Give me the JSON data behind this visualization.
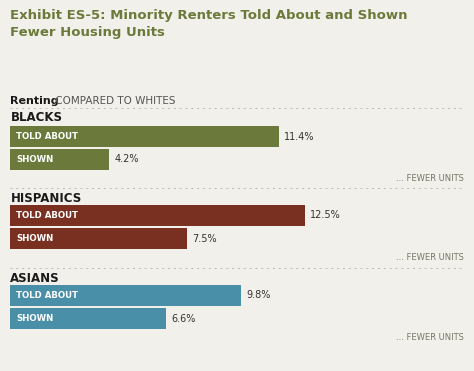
{
  "title_line1": "Exhibit ES-5: Minority Renters Told About and Shown",
  "title_line2": "Fewer Housing Units",
  "subtitle_bold": "Renting",
  "subtitle_normal": " COMPARED TO WHITES",
  "title_color": "#6b7a3a",
  "background_color": "#f2f0eb",
  "groups": [
    {
      "label": "BLACKS",
      "bars": [
        {
          "name": "TOLD ABOUT",
          "value": 11.4,
          "label": "11.4%",
          "color": "#6b7a3a"
        },
        {
          "name": "SHOWN",
          "value": 4.2,
          "label": "4.2%",
          "color": "#6b7a3a"
        }
      ]
    },
    {
      "label": "HISPANICS",
      "bars": [
        {
          "name": "TOLD ABOUT",
          "value": 12.5,
          "label": "12.5%",
          "color": "#7a3020"
        },
        {
          "name": "SHOWN",
          "value": 7.5,
          "label": "7.5%",
          "color": "#7a3020"
        }
      ]
    },
    {
      "label": "ASIANS",
      "bars": [
        {
          "name": "TOLD ABOUT",
          "value": 9.8,
          "label": "9.8%",
          "color": "#4a8fa8"
        },
        {
          "name": "SHOWN",
          "value": 6.6,
          "label": "6.6%",
          "color": "#4a8fa8"
        }
      ]
    }
  ],
  "max_value": 14.5,
  "fewer_units_text": "... FEWER UNITS",
  "separator_color": "#bbbbaa"
}
